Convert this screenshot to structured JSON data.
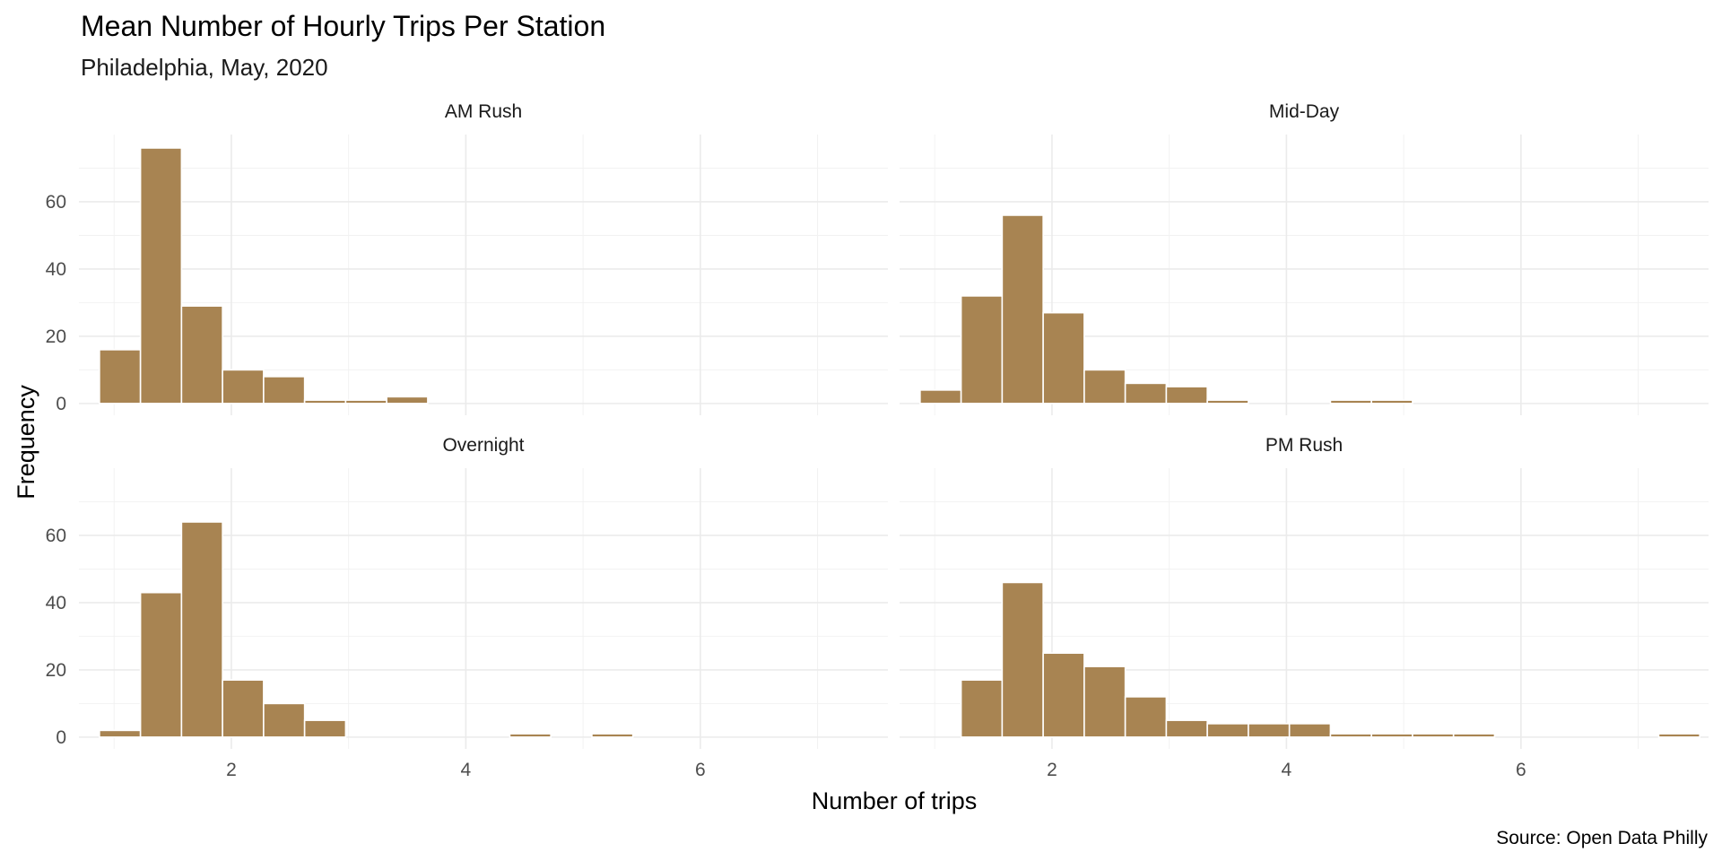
{
  "colors": {
    "bar_fill": "#A88452",
    "grid": "#EBEBEB",
    "background": "#FFFFFF"
  },
  "chart_data": {
    "type": "bar",
    "title": "Mean Number of Hourly Trips Per Station",
    "subtitle": "Philadelphia, May, 2020",
    "xlabel": "Number of trips",
    "ylabel": "Frequency",
    "caption": "Source: Open Data Philly",
    "xlim": [
      0.7,
      7.6
    ],
    "ylim": [
      -3.5,
      80
    ],
    "x_ticks": [
      2,
      4,
      6
    ],
    "y_ticks": [
      0,
      20,
      40,
      60
    ],
    "bin_width": 0.35,
    "grid": true,
    "legend": "none",
    "panels": [
      {
        "name": "AM Rush",
        "bins": [
          {
            "x": 1.05,
            "count": 16
          },
          {
            "x": 1.4,
            "count": 76
          },
          {
            "x": 1.75,
            "count": 29
          },
          {
            "x": 2.1,
            "count": 10
          },
          {
            "x": 2.45,
            "count": 8
          },
          {
            "x": 2.8,
            "count": 1
          },
          {
            "x": 3.15,
            "count": 1
          },
          {
            "x": 3.5,
            "count": 2
          }
        ]
      },
      {
        "name": "Mid-Day",
        "bins": [
          {
            "x": 1.05,
            "count": 4
          },
          {
            "x": 1.4,
            "count": 32
          },
          {
            "x": 1.75,
            "count": 56
          },
          {
            "x": 2.1,
            "count": 27
          },
          {
            "x": 2.45,
            "count": 10
          },
          {
            "x": 2.8,
            "count": 6
          },
          {
            "x": 3.15,
            "count": 5
          },
          {
            "x": 3.5,
            "count": 1
          },
          {
            "x": 4.55,
            "count": 1
          },
          {
            "x": 4.9,
            "count": 1
          }
        ]
      },
      {
        "name": "Overnight",
        "bins": [
          {
            "x": 1.05,
            "count": 2
          },
          {
            "x": 1.4,
            "count": 43
          },
          {
            "x": 1.75,
            "count": 64
          },
          {
            "x": 2.1,
            "count": 17
          },
          {
            "x": 2.45,
            "count": 10
          },
          {
            "x": 2.8,
            "count": 5
          },
          {
            "x": 4.55,
            "count": 1
          },
          {
            "x": 5.25,
            "count": 1
          }
        ]
      },
      {
        "name": "PM Rush",
        "bins": [
          {
            "x": 1.4,
            "count": 17
          },
          {
            "x": 1.75,
            "count": 46
          },
          {
            "x": 2.1,
            "count": 25
          },
          {
            "x": 2.45,
            "count": 21
          },
          {
            "x": 2.8,
            "count": 12
          },
          {
            "x": 3.15,
            "count": 5
          },
          {
            "x": 3.5,
            "count": 4
          },
          {
            "x": 3.85,
            "count": 4
          },
          {
            "x": 4.2,
            "count": 4
          },
          {
            "x": 4.55,
            "count": 1
          },
          {
            "x": 4.9,
            "count": 1
          },
          {
            "x": 5.25,
            "count": 1
          },
          {
            "x": 5.6,
            "count": 1
          },
          {
            "x": 7.35,
            "count": 1
          }
        ]
      }
    ]
  }
}
